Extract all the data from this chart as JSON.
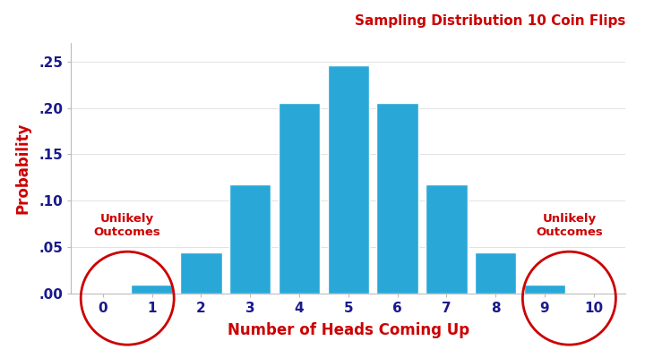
{
  "title": "Sampling Distribution 10 Coin Flips",
  "xlabel": "Number of Heads Coming Up",
  "ylabel": "Probability",
  "values": [
    0.0009765625,
    0.009765625,
    0.0439453125,
    0.1171875,
    0.205078125,
    0.24609375,
    0.205078125,
    0.1171875,
    0.0439453125,
    0.009765625,
    0.0009765625
  ],
  "bar_color": "#29A8D8",
  "bar_edge_color": "#FFFFFF",
  "title_color": "#CC0000",
  "label_color": "#CC0000",
  "tick_color": "#1A1A8C",
  "annotation_color": "#CC0000",
  "circle_color": "#CC0000",
  "ylim": [
    0,
    0.27
  ],
  "yticks": [
    0.0,
    0.05,
    0.1,
    0.15,
    0.2,
    0.25
  ],
  "ytick_labels": [
    ".00",
    ".05",
    ".10",
    ".15",
    ".20",
    ".25"
  ],
  "xticks": [
    0,
    1,
    2,
    3,
    4,
    5,
    6,
    7,
    8,
    9,
    10
  ],
  "annotation_left_text": "Unlikely\nOutcomes",
  "annotation_right_text": "Unlikely\nOutcomes",
  "background_color": "#FFFFFF",
  "figsize": [
    7.2,
    4.0
  ],
  "dpi": 100
}
